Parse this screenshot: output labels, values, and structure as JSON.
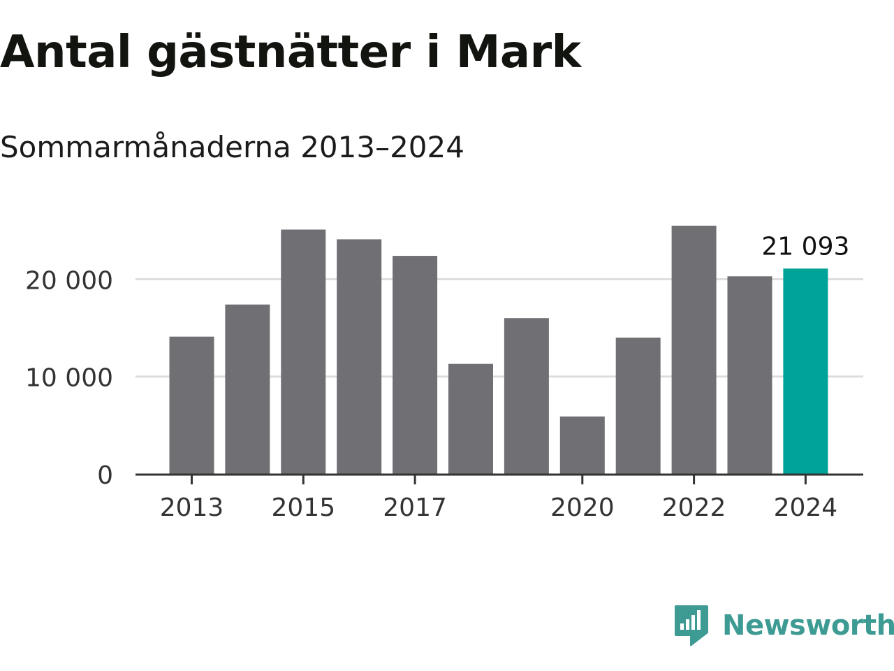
{
  "header": {
    "title": "Antal gästnätter i Mark",
    "subtitle": "Sommarmånaderna 2013–2024"
  },
  "brand": {
    "name": "Newsworthy",
    "icon": "newsworthy-logo-icon"
  },
  "colors": {
    "bar": "#706f74",
    "highlight": "#00a398",
    "grid": "#dddddd",
    "axis": "#333333",
    "brand": "#3d9b94"
  },
  "chart_data": {
    "type": "bar",
    "title": "Antal gästnätter i Mark",
    "subtitle": "Sommarmånaderna 2013–2024",
    "xlabel": "",
    "ylabel": "",
    "categories": [
      "2013",
      "2014",
      "2015",
      "2016",
      "2017",
      "2018",
      "2019",
      "2020",
      "2021",
      "2022",
      "2023",
      "2024"
    ],
    "values": [
      14100,
      17400,
      25100,
      24100,
      22400,
      11300,
      16000,
      5900,
      14000,
      25500,
      20300,
      21093
    ],
    "highlight_index": 11,
    "data_labels": [
      {
        "index": 11,
        "text": "21 093"
      }
    ],
    "xticks": [
      "2013",
      "2015",
      "2017",
      "2020",
      "2022",
      "2024"
    ],
    "yticks": [
      {
        "value": 0,
        "label": "0"
      },
      {
        "value": 10000,
        "label": "10 000"
      },
      {
        "value": 20000,
        "label": "20 000"
      }
    ],
    "ylim": [
      0,
      27000
    ],
    "grid": true,
    "legend": "none"
  }
}
